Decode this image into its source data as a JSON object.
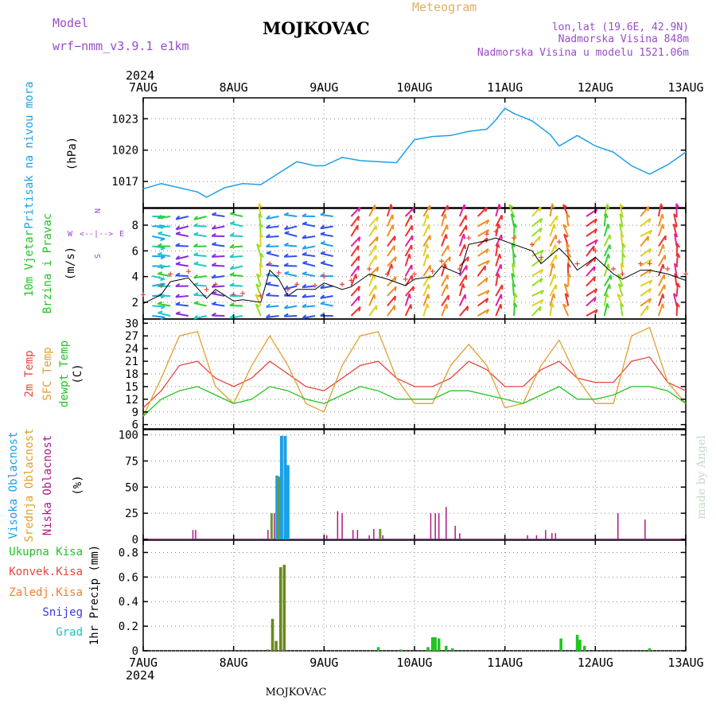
{
  "header": {
    "model_label": "Model",
    "model_name": "wrf−nmm_v3.9.1  e1km",
    "station": "MOJKOVAC",
    "title": "Meteogram",
    "coords": "lon,lat (19.6E, 42.9N)",
    "altitude": "Nadmorska Visina 848m",
    "model_altitude": "Nadmorska Visina u modelu 1521.06m",
    "footer_station": "MOJKOVAC",
    "credit": "made by Angel"
  },
  "colors": {
    "pressure": "#1fa0e6",
    "temp2m": "#e8453c",
    "sfc_temp": "#e0a030",
    "dewpt": "#22c422",
    "high_cloud": "#1aa0e8",
    "mid_cloud": "#6a9a30",
    "low_cloud": "#b01888",
    "total_precip": "#22c422",
    "conv_precip": "#e8453c",
    "frozen_precip": "#f08030",
    "snow": "#3838e8",
    "graupel": "#20c0c0",
    "wind_speed": "#000000",
    "gust": "#e8453c",
    "header_purple": "#9a4cc8",
    "title_orange": "#e0b060"
  },
  "time_axis": {
    "year": "2024",
    "labels": [
      "7AUG",
      "8AUG",
      "9AUG",
      "10AUG",
      "11AUG",
      "12AUG",
      "13AUG"
    ],
    "start_day": 7,
    "end_day": 13
  },
  "panels": {
    "pressure": {
      "ylabel_left": "Pritisak na nivou mora",
      "unit": "(hPa)"
    },
    "wind": {
      "ylabel_left1": "10m Vjetar",
      "ylabel_left2": "Brzina i Pravac",
      "unit": "(m/s)",
      "compass_n": "N",
      "compass_s": "S",
      "compass_w": "W",
      "compass_e": "E"
    },
    "temp": {
      "label1": "2m Temp",
      "label2": "SFC Temp",
      "label3": "dewpt Temp",
      "unit": "(C)"
    },
    "cloud": {
      "label1": "Visoka Oblacnost",
      "label2": "Srednja Oblacnost",
      "label3": "Niska Oblacnost",
      "unit": "(%)"
    },
    "precip": {
      "legend": [
        "Ukupna Kisa",
        "Konvek.Kisa",
        "Zaledj.Kisa",
        "Snijeg",
        "Grad"
      ],
      "unit": "1hr Precip (mm)"
    }
  },
  "chart_data": [
    {
      "type": "line",
      "name": "pressure",
      "ylim": [
        1014.5,
        1025
      ],
      "yticks": [
        1017,
        1020,
        1023
      ],
      "ytick_labels": [
        "1017",
        "1020",
        "1023"
      ],
      "x": [
        7.0,
        7.2,
        7.4,
        7.6,
        7.7,
        7.9,
        8.1,
        8.3,
        8.5,
        8.7,
        8.9,
        9.0,
        9.2,
        9.4,
        9.6,
        9.8,
        10.0,
        10.2,
        10.4,
        10.6,
        10.8,
        10.9,
        11.0,
        11.1,
        11.3,
        11.5,
        11.6,
        11.8,
        12.0,
        12.2,
        12.4,
        12.6,
        12.8,
        13.0
      ],
      "values": [
        1016.3,
        1016.8,
        1016.4,
        1016.0,
        1015.5,
        1016.4,
        1016.8,
        1016.7,
        1017.8,
        1018.9,
        1018.5,
        1018.5,
        1019.3,
        1019.0,
        1018.9,
        1018.8,
        1021.0,
        1021.3,
        1021.4,
        1021.8,
        1022.0,
        1022.9,
        1024.0,
        1023.5,
        1022.8,
        1021.5,
        1020.4,
        1021.4,
        1020.4,
        1019.8,
        1018.5,
        1017.7,
        1018.6,
        1019.8
      ]
    },
    {
      "type": "line",
      "name": "wind",
      "ylim": [
        0.7,
        9.3
      ],
      "yticks": [
        2,
        4,
        6,
        8
      ],
      "ytick_labels": [
        "2",
        "4",
        "6",
        "8"
      ],
      "x": [
        7.0,
        7.2,
        7.3,
        7.5,
        7.7,
        7.8,
        8.0,
        8.1,
        8.3,
        8.4,
        8.5,
        8.6,
        8.7,
        8.9,
        9.0,
        9.2,
        9.3,
        9.5,
        9.7,
        9.9,
        10.0,
        10.2,
        10.3,
        10.5,
        10.6,
        10.8,
        10.9,
        11.1,
        11.3,
        11.4,
        11.6,
        11.7,
        11.8,
        12.0,
        12.2,
        12.3,
        12.5,
        12.6,
        12.8,
        13.0
      ],
      "values": [
        1.9,
        2.6,
        3.6,
        3.9,
        2.3,
        3.0,
        2.1,
        2.2,
        2.0,
        4.5,
        3.8,
        2.5,
        3.0,
        3.0,
        3.5,
        3.0,
        3.2,
        4.2,
        3.8,
        3.3,
        3.8,
        4.0,
        4.8,
        4.2,
        6.5,
        6.8,
        7.0,
        6.5,
        6.0,
        5.0,
        6.2,
        5.5,
        4.5,
        5.5,
        4.2,
        3.8,
        4.5,
        4.5,
        4.2,
        3.7
      ],
      "gust_values": [
        2.6,
        3.3,
        4.2,
        4.4,
        3.0,
        3.4,
        2.6,
        2.7,
        2.5,
        5.0,
        4.3,
        3.0,
        3.4,
        3.3,
        4.0,
        3.4,
        3.7,
        4.6,
        4.2,
        3.8,
        4.2,
        4.4,
        5.2,
        4.6,
        7.0,
        7.3,
        7.5,
        7.0,
        6.5,
        5.5,
        6.7,
        6.0,
        5.0,
        6.0,
        4.6,
        4.2,
        5.0,
        5.0,
        4.6,
        4.2
      ]
    },
    {
      "type": "line",
      "name": "temperature",
      "ylim": [
        5,
        31
      ],
      "yticks": [
        6,
        9,
        12,
        15,
        18,
        21,
        24,
        27,
        30
      ],
      "ytick_labels": [
        "6",
        "9",
        "12",
        "15",
        "18",
        "21",
        "24",
        "27",
        "30"
      ],
      "x": [
        7.0,
        7.2,
        7.4,
        7.6,
        7.8,
        8.0,
        8.2,
        8.4,
        8.6,
        8.8,
        9.0,
        9.2,
        9.4,
        9.6,
        9.8,
        10.0,
        10.2,
        10.4,
        10.6,
        10.8,
        11.0,
        11.2,
        11.4,
        11.6,
        11.8,
        12.0,
        12.2,
        12.4,
        12.6,
        12.8,
        13.0
      ],
      "series": [
        {
          "name": "2m Temp",
          "values": [
            10,
            14,
            20,
            21,
            17,
            15,
            17,
            21,
            18,
            15,
            14,
            17,
            20,
            21,
            17,
            15,
            15,
            17,
            21,
            19,
            15,
            15,
            19,
            21,
            17,
            16,
            16,
            21,
            22,
            16,
            14
          ]
        },
        {
          "name": "SFC Temp",
          "values": [
            8,
            17,
            27,
            28,
            15,
            11,
            20,
            27,
            20,
            11,
            9,
            20,
            27,
            28,
            17,
            11,
            11,
            20,
            25,
            20,
            10,
            11,
            20,
            26,
            17,
            11,
            11,
            27,
            29,
            16,
            11
          ]
        },
        {
          "name": "dewpt Temp",
          "values": [
            8,
            12,
            14,
            15,
            13,
            11,
            12,
            15,
            14,
            12,
            11,
            13,
            15,
            14,
            12,
            12,
            12,
            14,
            14,
            13,
            12,
            11,
            13,
            15,
            12,
            12,
            13,
            15,
            15,
            14,
            11
          ]
        }
      ]
    },
    {
      "type": "bar",
      "name": "cloud_cover",
      "ylim": [
        0,
        105
      ],
      "yticks": [
        0,
        25,
        50,
        75,
        100
      ],
      "ytick_labels": [
        "0",
        "25",
        "50",
        "75",
        "100"
      ],
      "series": [
        {
          "name": "Visoka Oblacnost",
          "x": [
            8.48,
            8.53,
            8.57,
            8.6
          ],
          "values": [
            61,
            99,
            99,
            71
          ]
        },
        {
          "name": "Srednja Oblacnost",
          "x": [
            8.42,
            8.5,
            9.62
          ],
          "values": [
            25,
            60,
            10
          ]
        },
        {
          "name": "Niska Oblacnost",
          "x": [
            7.55,
            7.58,
            8.38,
            8.45,
            9.03,
            9.15,
            9.2,
            9.32,
            9.37,
            9.5,
            9.55,
            9.65,
            10.18,
            10.23,
            10.27,
            10.35,
            10.45,
            10.5,
            11.25,
            11.35,
            11.45,
            11.52,
            11.56,
            12.25,
            12.55
          ],
          "values": [
            9,
            9,
            9,
            25,
            4,
            27,
            25,
            9,
            9,
            4,
            10,
            4,
            25,
            25,
            25,
            31,
            13,
            6,
            4,
            4,
            9,
            6,
            6,
            25,
            19
          ]
        }
      ]
    },
    {
      "type": "bar",
      "name": "precipitation",
      "ylim": [
        0,
        0.9
      ],
      "yticks": [
        0,
        0.2,
        0.4,
        0.6,
        0.8
      ],
      "ytick_labels": [
        "0",
        "0.2",
        "0.4",
        "0.6",
        "0.8"
      ],
      "series": [
        {
          "name": "Ukupna Kisa",
          "x": [
            8.38,
            8.43,
            8.47,
            8.52,
            8.56,
            9.6,
            9.85,
            10.15,
            10.2,
            10.23,
            10.27,
            10.35,
            10.42,
            11.62,
            11.8,
            11.83,
            11.88,
            12.6
          ],
          "values": [
            0.01,
            0.26,
            0.08,
            0.68,
            0.7,
            0.03,
            0.01,
            0.03,
            0.11,
            0.11,
            0.1,
            0.04,
            0.02,
            0.1,
            0.13,
            0.09,
            0.04,
            0.02
          ]
        },
        {
          "name": "Konvek.Kisa",
          "x": [],
          "values": []
        },
        {
          "name": "Zaledj.Kisa",
          "x": [],
          "values": []
        },
        {
          "name": "Snijeg",
          "x": [],
          "values": []
        },
        {
          "name": "Grad",
          "x": [],
          "values": []
        }
      ]
    }
  ]
}
